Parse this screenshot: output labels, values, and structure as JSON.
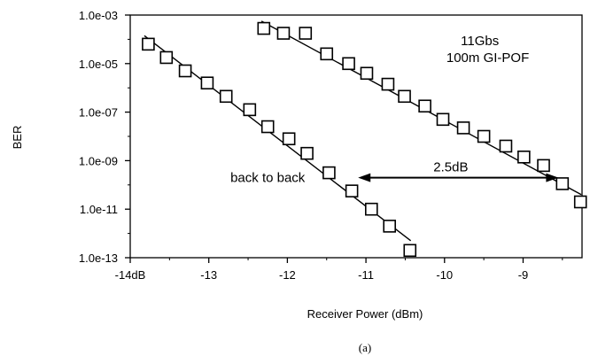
{
  "chart_data": {
    "type": "scatter",
    "title": "",
    "xlabel": "Receiver Power (dBm)",
    "ylabel": "BER",
    "caption": "(a)",
    "y_scale": "log",
    "xlim": [
      -14,
      -8.25
    ],
    "ylim_exponent": [
      -13,
      -3
    ],
    "x_ticks": [
      {
        "value": -14,
        "label": "-14dB"
      },
      {
        "value": -13,
        "label": "-13"
      },
      {
        "value": -12,
        "label": "-12"
      },
      {
        "value": -11,
        "label": "-11"
      },
      {
        "value": -10,
        "label": "-10"
      },
      {
        "value": -9,
        "label": "-9"
      }
    ],
    "y_ticks": [
      {
        "exp": -3,
        "label": "1.0e-03"
      },
      {
        "exp": -5,
        "label": "1.0e-05"
      },
      {
        "exp": -7,
        "label": "1.0e-07"
      },
      {
        "exp": -9,
        "label": "1.0e-09"
      },
      {
        "exp": -11,
        "label": "1.0e-11"
      },
      {
        "exp": -13,
        "label": "1.0e-13"
      }
    ],
    "grid": false,
    "legend": "none",
    "series": [
      {
        "name": "back to back",
        "marker": "open-square",
        "points": [
          {
            "x": -13.77,
            "ber": "1e-4.2"
          },
          {
            "x": -13.54,
            "ber": "1e-4.75"
          },
          {
            "x": -13.3,
            "ber": "1e-5.3"
          },
          {
            "x": -13.02,
            "ber": "1e-5.8"
          },
          {
            "x": -12.78,
            "ber": "1e-6.35"
          },
          {
            "x": -12.48,
            "ber": "1e-6.9"
          },
          {
            "x": -12.25,
            "ber": "1e-7.6"
          },
          {
            "x": -11.98,
            "ber": "1e-8.1"
          },
          {
            "x": -11.75,
            "ber": "1e-8.7"
          },
          {
            "x": -11.47,
            "ber": "1e-9.5"
          },
          {
            "x": -11.18,
            "ber": "1e-10.25"
          },
          {
            "x": -10.93,
            "ber": "1e-11.0"
          },
          {
            "x": -10.7,
            "ber": "1e-11.7"
          },
          {
            "x": -10.44,
            "ber": "1e-12.7"
          }
        ],
        "fit_line": [
          [
            -13.82,
            "1e-3.85"
          ],
          [
            -10.43,
            "1e-12.3"
          ]
        ]
      },
      {
        "name": "11Gbs 100m GI-POF",
        "marker": "open-square",
        "points": [
          {
            "x": -12.3,
            "ber": "1e-3.55"
          },
          {
            "x": -12.05,
            "ber": "1e-3.75"
          },
          {
            "x": -11.77,
            "ber": "1e-3.75"
          },
          {
            "x": -11.5,
            "ber": "1e-4.6"
          },
          {
            "x": -11.22,
            "ber": "1e-5.0"
          },
          {
            "x": -10.99,
            "ber": "1e-5.4"
          },
          {
            "x": -10.72,
            "ber": "1e-5.85"
          },
          {
            "x": -10.51,
            "ber": "1e-6.35"
          },
          {
            "x": -10.25,
            "ber": "1e-6.75"
          },
          {
            "x": -10.02,
            "ber": "1e-7.3"
          },
          {
            "x": -9.76,
            "ber": "1e-7.65"
          },
          {
            "x": -9.5,
            "ber": "1e-8.0"
          },
          {
            "x": -9.22,
            "ber": "1e-8.4"
          },
          {
            "x": -8.99,
            "ber": "1e-8.85"
          },
          {
            "x": -8.74,
            "ber": "1e-9.2"
          },
          {
            "x": -8.5,
            "ber": "1e-9.95"
          },
          {
            "x": -8.27,
            "ber": "1e-10.7"
          }
        ],
        "fit_line": [
          [
            -12.33,
            "1e-3.25"
          ],
          [
            -8.26,
            "1e-10.4"
          ]
        ]
      }
    ],
    "annotations": [
      {
        "text": "11Gbs",
        "x": -9.55,
        "y_exp": -4.05
      },
      {
        "text": "100m GI-POF",
        "x": -9.45,
        "y_exp": -4.75
      },
      {
        "text": "back to back",
        "x": -12.25,
        "y_exp": -9.7
      },
      {
        "text": "2.5dB",
        "x": -9.92,
        "y_exp": -9.25
      }
    ],
    "arrow": {
      "x_from": -11.1,
      "x_to": -8.55,
      "y_exp": -9.7,
      "label": "2.5dB"
    }
  }
}
